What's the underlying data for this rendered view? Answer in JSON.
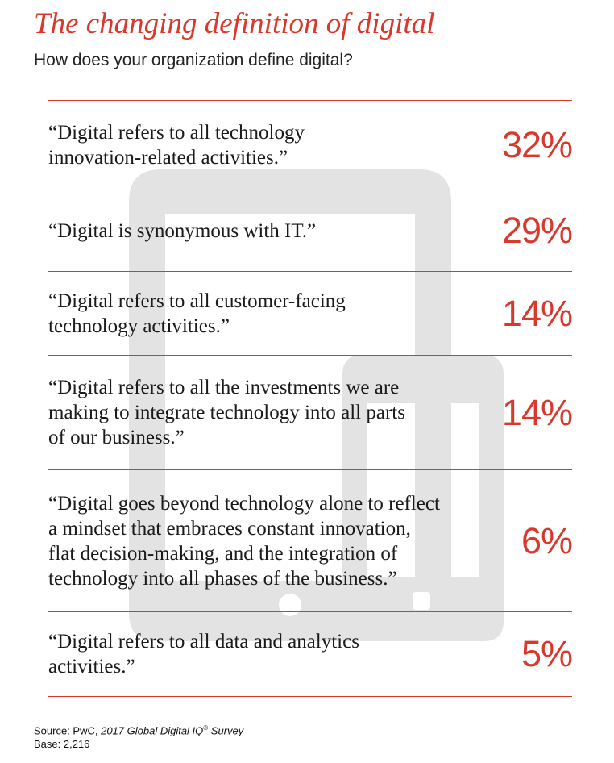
{
  "title": "The changing definition of digital",
  "subtitle": "How does your organization define digital?",
  "colors": {
    "accent": "#d9382c",
    "watermark": "#e3e3e3"
  },
  "chart_data": {
    "type": "table",
    "title": "The changing definition of digital",
    "subtitle": "How does your organization define digital?",
    "rows": [
      {
        "text": "“Digital refers to all technology\ninnovation-related activities.”",
        "value": 32,
        "label": "32%"
      },
      {
        "text": "“Digital is synonymous with IT.”",
        "value": 29,
        "label": "29%"
      },
      {
        "text": "“Digital refers to all customer-facing\ntechnology activities.”",
        "value": 14,
        "label": "14%"
      },
      {
        "text": "“Digital refers to all the investments we are\nmaking to integrate technology into all parts\nof our business.”",
        "value": 14,
        "label": "14%"
      },
      {
        "text": "“Digital goes beyond technology alone to reflect\na mindset that embraces constant innovation,\nflat decision-making, and the integration of\ntechnology into all phases of the business.”",
        "value": 6,
        "label": "6%"
      },
      {
        "text": "“Digital refers to all data and analytics\nactivities.”",
        "value": 5,
        "label": "5%"
      }
    ]
  },
  "footer": {
    "source_prefix": "Source: PwC, ",
    "source_title": "2017 Global Digital IQ",
    "reg_mark": "®",
    "source_suffix": " Survey",
    "base": "Base: 2,216"
  },
  "watermark_icon": "tablet-phone-icon"
}
